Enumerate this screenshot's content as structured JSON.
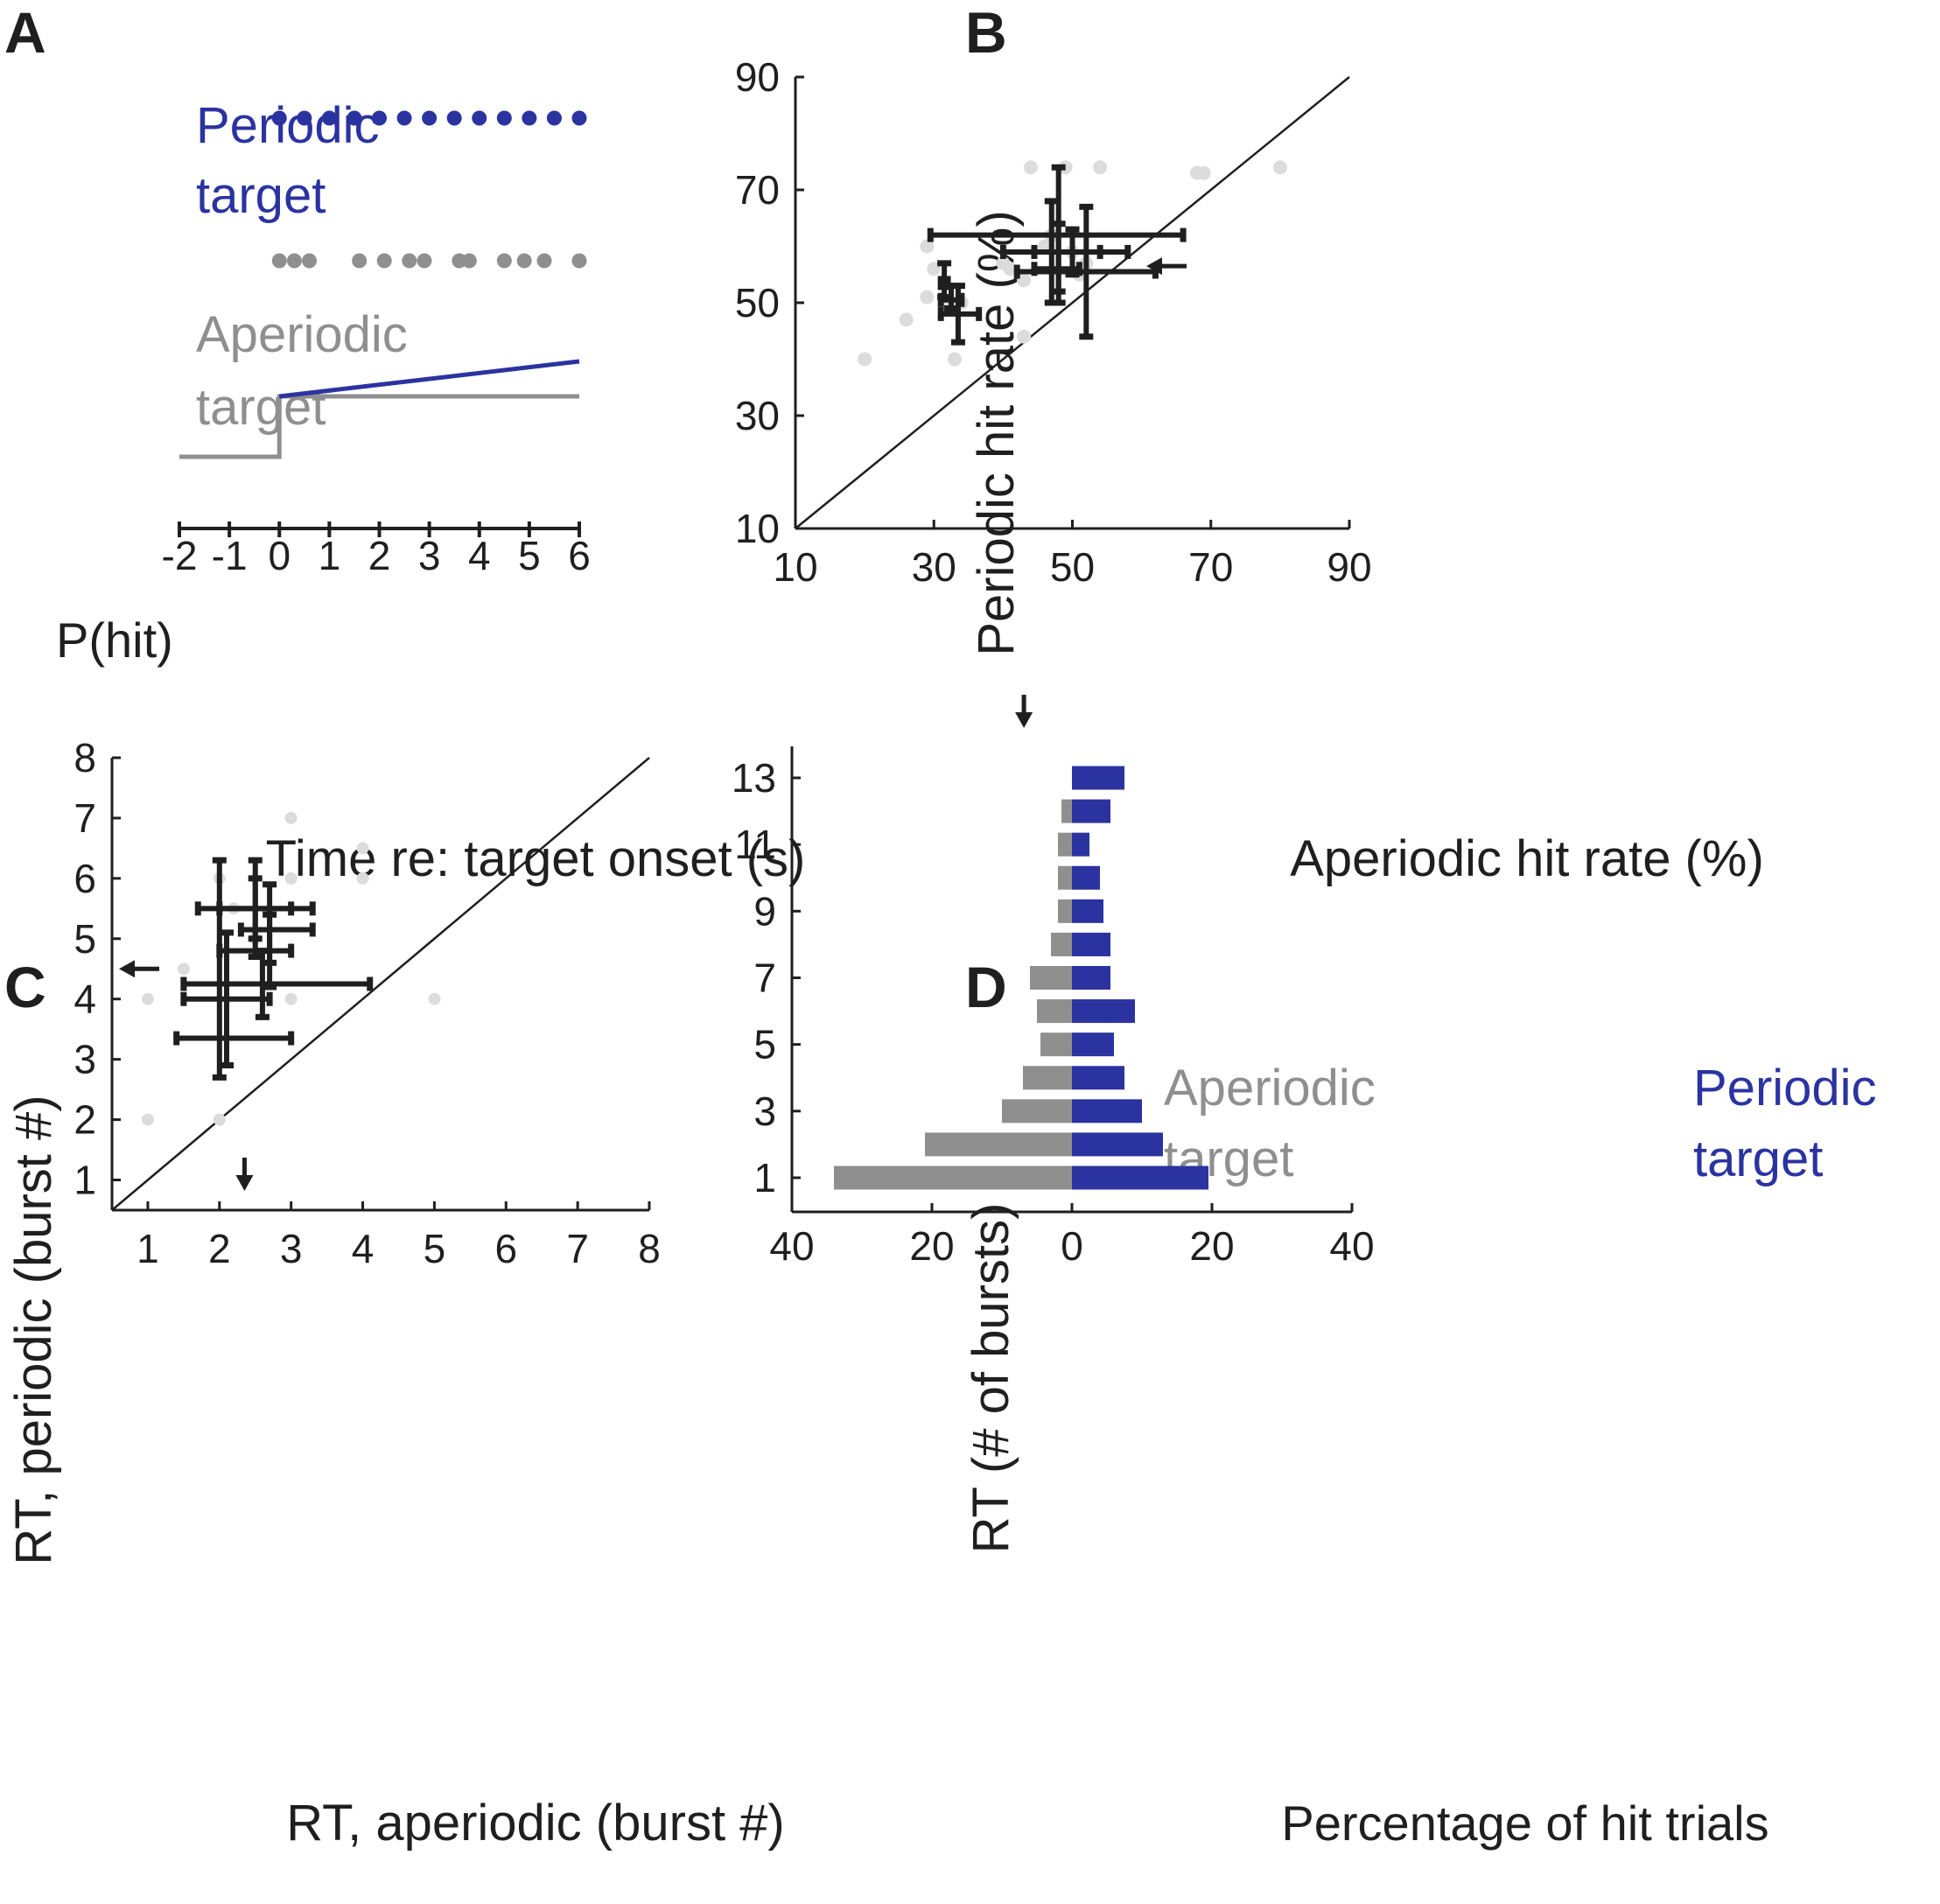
{
  "colors": {
    "blue": "#2b33a0",
    "gray": "#8f8f8f",
    "light": "#dcdcdc",
    "black": "#1f1f1f"
  },
  "chart_data": [
    {
      "panel": "A",
      "type": "line",
      "title": "",
      "xlabel": "Time re: target onset (s)",
      "ylabel": "P(hit)",
      "x_ticks": [
        "-2",
        "-1",
        "0",
        "1",
        "2",
        "3",
        "4",
        "5",
        "6"
      ],
      "xlim": [
        -2,
        6
      ],
      "labels": {
        "periodic_1": "Periodic",
        "periodic_2": "target",
        "aperiodic_1": "Aperiodic",
        "aperiodic_2": "target"
      },
      "periodic_bursts": [
        0,
        0.5,
        1,
        1.5,
        2,
        2.5,
        3,
        3.5,
        4,
        4.5,
        5,
        5.5,
        6
      ],
      "aperiodic_bursts": [
        0,
        0.3,
        0.6,
        1.6,
        2.1,
        2.6,
        2.9,
        3.6,
        3.8,
        4.5,
        4.9,
        5.3,
        6
      ],
      "series": [
        {
          "name": "Aperiodic P(hit)",
          "x": [
            -2,
            0,
            0,
            6
          ],
          "y": [
            0,
            0,
            1,
            1
          ]
        },
        {
          "name": "Periodic P(hit)",
          "x": [
            0,
            6
          ],
          "y": [
            1,
            1.58
          ]
        }
      ]
    },
    {
      "panel": "B",
      "type": "scatter",
      "xlabel": "Aperiodic hit rate (%)",
      "ylabel": "Periodic hit rate (%)",
      "xlim": [
        10,
        90
      ],
      "ylim": [
        10,
        90
      ],
      "x_ticks": [
        "10",
        "30",
        "50",
        "70",
        "90"
      ],
      "y_ticks": [
        "10",
        "30",
        "50",
        "70",
        "90"
      ],
      "diagonal": true,
      "points": [
        [
          20,
          40
        ],
        [
          26,
          47
        ],
        [
          29,
          60
        ],
        [
          29,
          51
        ],
        [
          30,
          56
        ],
        [
          32,
          50
        ],
        [
          33,
          40
        ],
        [
          34,
          50
        ],
        [
          40,
          57
        ],
        [
          41,
          56
        ],
        [
          43,
          54
        ],
        [
          43,
          44
        ],
        [
          44,
          74
        ],
        [
          46,
          60
        ],
        [
          47,
          62
        ],
        [
          49,
          74
        ],
        [
          50,
          59
        ],
        [
          51,
          55
        ],
        [
          52,
          57
        ],
        [
          54,
          74
        ],
        [
          68,
          73
        ],
        [
          69,
          73
        ],
        [
          80,
          74
        ]
      ],
      "group_means": [
        {
          "x": 31.5,
          "xerr": [
            31.0,
            32.0
          ],
          "y": 53.5,
          "yerr": [
            51,
            57
          ]
        },
        {
          "x": 32.5,
          "xerr": [
            31.0,
            34.0
          ],
          "y": 50.5,
          "yerr": [
            49,
            53
          ]
        },
        {
          "x": 33.5,
          "xerr": [
            31.0,
            36.5
          ],
          "y": 48.0,
          "yerr": [
            43,
            53
          ]
        },
        {
          "x": 47.0,
          "xerr": [
            40.0,
            58.0
          ],
          "y": 59.0,
          "yerr": [
            50,
            68
          ]
        },
        {
          "x": 48.0,
          "xerr": [
            44.5,
            51.0
          ],
          "y": 56.0,
          "yerr": [
            50,
            64
          ]
        },
        {
          "x": 48.0,
          "xerr": [
            29.5,
            66.0
          ],
          "y": 62.0,
          "yerr": [
            52,
            74
          ]
        },
        {
          "x": 50.0,
          "xerr": [
            44.5,
            54.0
          ],
          "y": 59.0,
          "yerr": [
            55,
            63
          ]
        },
        {
          "x": 52.0,
          "xerr": [
            42.0,
            62.0
          ],
          "y": 55.5,
          "yerr": [
            44,
            67
          ]
        }
      ],
      "arrows": [
        {
          "axis": "x",
          "value": 43
        },
        {
          "axis": "y",
          "value": 56.5
        }
      ]
    },
    {
      "panel": "C",
      "type": "scatter",
      "xlabel": "RT, aperiodic (burst #)",
      "ylabel": "RT, periodic (burst #)",
      "xlim": [
        0.5,
        8
      ],
      "ylim": [
        0.5,
        8
      ],
      "x_ticks": [
        "1",
        "2",
        "3",
        "4",
        "5",
        "6",
        "7",
        "8"
      ],
      "y_ticks": [
        "1",
        "2",
        "3",
        "4",
        "5",
        "6",
        "7",
        "8"
      ],
      "diagonal": true,
      "points": [
        [
          1,
          2
        ],
        [
          1,
          4
        ],
        [
          1.5,
          4.5
        ],
        [
          2,
          6
        ],
        [
          2,
          2
        ],
        [
          2.2,
          5.5
        ],
        [
          2.5,
          5
        ],
        [
          3,
          7
        ],
        [
          3,
          6
        ],
        [
          3,
          4
        ],
        [
          4,
          6.5
        ],
        [
          4,
          6
        ],
        [
          5,
          4
        ]
      ],
      "group_means": [
        {
          "x": 2.5,
          "xerr": [
            1.7,
            3.3
          ],
          "y": 5.5,
          "yerr": [
            4.7,
            6.3
          ]
        },
        {
          "x": 2.5,
          "xerr": [
            2.0,
            3.0
          ],
          "y": 5.5,
          "yerr": [
            5.0,
            6.0
          ]
        },
        {
          "x": 2.7,
          "xerr": [
            2.3,
            3.3
          ],
          "y": 5.15,
          "yerr": [
            4.6,
            5.9
          ]
        },
        {
          "x": 2.7,
          "xerr": [
            2.0,
            3.0
          ],
          "y": 4.8,
          "yerr": [
            4.2,
            5.4
          ]
        },
        {
          "x": 2.6,
          "xerr": [
            1.5,
            4.1
          ],
          "y": 4.25,
          "yerr": [
            3.7,
            4.8
          ]
        },
        {
          "x": 2.1,
          "xerr": [
            1.5,
            2.7
          ],
          "y": 4.0,
          "yerr": [
            2.9,
            5.1
          ]
        },
        {
          "x": 2.0,
          "xerr": [
            1.4,
            3.0
          ],
          "y": 3.35,
          "yerr": [
            2.7,
            6.3
          ]
        }
      ],
      "arrows": [
        {
          "axis": "x",
          "value": 2.35
        },
        {
          "axis": "y",
          "value": 4.5
        }
      ]
    },
    {
      "panel": "D",
      "type": "bar",
      "orientation": "horizontal",
      "xlabel": "Percentage of hit trials",
      "ylabel": "RT (# of bursts)",
      "xlim": [
        -40,
        40
      ],
      "x_ticks": [
        "40",
        "20",
        "0",
        "20",
        "40"
      ],
      "y_ticks": [
        "1",
        "3",
        "5",
        "7",
        "9",
        "11",
        "13"
      ],
      "legend": {
        "aperiodic_1": "Aperiodic",
        "aperiodic_2": "target",
        "periodic_1": "Periodic",
        "periodic_2": "target"
      },
      "categories": [
        1,
        2,
        3,
        4,
        5,
        6,
        7,
        8,
        9,
        10,
        11,
        12,
        13
      ],
      "series": [
        {
          "name": "Aperiodic target",
          "values": [
            34,
            21,
            10,
            7,
            4.5,
            5,
            6,
            3,
            2,
            2,
            2,
            1.5,
            0
          ]
        },
        {
          "name": "Periodic target",
          "values": [
            19.5,
            13,
            10,
            7.5,
            6,
            9,
            5.5,
            5.5,
            4.5,
            4,
            2.5,
            5.5,
            7.5
          ]
        }
      ]
    }
  ],
  "panel_labels": [
    "A",
    "B",
    "C",
    "D"
  ]
}
